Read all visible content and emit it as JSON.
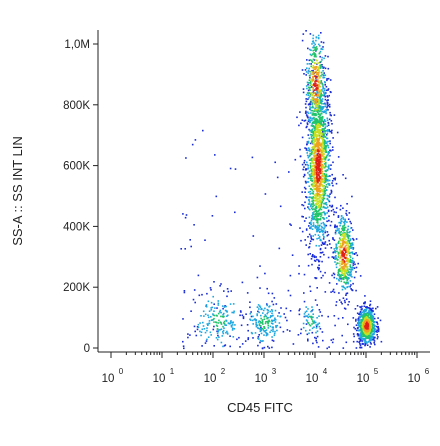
{
  "chart_data": {
    "type": "scatter",
    "title": "",
    "xlabel": "CD45 FITC",
    "ylabel": "SS-A :: SS INT LIN",
    "x_scale": "log",
    "xlim": [
      1,
      1000000
    ],
    "ylim": [
      0,
      1048576
    ],
    "x_ticks": [
      {
        "base": "10",
        "exp": "0",
        "value": 1
      },
      {
        "base": "10",
        "exp": "1",
        "value": 10
      },
      {
        "base": "10",
        "exp": "2",
        "value": 100
      },
      {
        "base": "10",
        "exp": "3",
        "value": 1000
      },
      {
        "base": "10",
        "exp": "4",
        "value": 10000
      },
      {
        "base": "10",
        "exp": "5",
        "value": 100000
      },
      {
        "base": "10",
        "exp": "6",
        "value": 1000000
      }
    ],
    "y_ticks": [
      {
        "label": "0",
        "value": 0
      },
      {
        "label": "200K",
        "value": 200000
      },
      {
        "label": "400K",
        "value": 400000
      },
      {
        "label": "600K",
        "value": 600000
      },
      {
        "label": "800K",
        "value": 800000
      },
      {
        "label": "1,0M",
        "value": 1000000
      }
    ],
    "density_colors": [
      "#1a2dd6",
      "#1ea8e0",
      "#22c46a",
      "#c8e020",
      "#f0a020",
      "#e02018"
    ],
    "populations": [
      {
        "log_x_center": 4.05,
        "y_center": 600000,
        "log_x_sd": 0.12,
        "y_sd": 140000,
        "count": 1500
      },
      {
        "log_x_center": 4.0,
        "y_center": 870000,
        "log_x_sd": 0.1,
        "y_sd": 90000,
        "count": 400
      },
      {
        "log_x_center": 4.55,
        "y_center": 310000,
        "log_x_sd": 0.1,
        "y_sd": 70000,
        "count": 500
      },
      {
        "log_x_center": 5.0,
        "y_center": 75000,
        "log_x_sd": 0.09,
        "y_sd": 30000,
        "count": 700
      },
      {
        "log_x_center": 3.0,
        "y_center": 85000,
        "log_x_sd": 0.18,
        "y_sd": 35000,
        "count": 170
      },
      {
        "log_x_center": 2.1,
        "y_center": 90000,
        "log_x_sd": 0.22,
        "y_sd": 45000,
        "count": 160
      },
      {
        "log_x_center": 3.9,
        "y_center": 90000,
        "log_x_sd": 0.1,
        "y_sd": 30000,
        "count": 60
      }
    ],
    "grid": false
  }
}
